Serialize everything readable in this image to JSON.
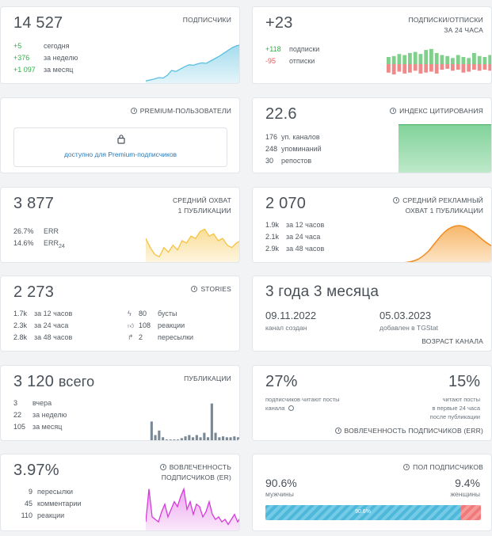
{
  "subscribers": {
    "value": "14 527",
    "title": "ПОДПИСЧИКИ",
    "rows": [
      {
        "n": "+5",
        "l": "сегодня"
      },
      {
        "n": "+376",
        "l": "за неделю"
      },
      {
        "n": "+1 097",
        "l": "за месяц"
      }
    ],
    "spark": [
      0.08,
      0.1,
      0.12,
      0.15,
      0.14,
      0.2,
      0.3,
      0.28,
      0.33,
      0.38,
      0.42,
      0.41,
      0.44,
      0.46,
      0.45,
      0.5,
      0.55,
      0.6,
      0.66,
      0.72,
      0.78,
      0.82,
      0.84
    ],
    "color": "#5bbfe0"
  },
  "subs24": {
    "value": "+23",
    "title_l1": "ПОДПИСКИ/ОТПИСКИ",
    "title_l2": "ЗА 24 ЧАСА",
    "rows": [
      {
        "n": "+118",
        "l": "подписки"
      },
      {
        "n": "-95",
        "l": "отписки"
      }
    ],
    "pos": [
      0.35,
      0.4,
      0.5,
      0.45,
      0.55,
      0.6,
      0.5,
      0.7,
      0.75,
      0.55,
      0.45,
      0.4,
      0.3,
      0.45,
      0.35,
      0.3,
      0.55,
      0.4,
      0.35,
      0.45
    ],
    "neg": [
      0.45,
      0.55,
      0.4,
      0.5,
      0.45,
      0.35,
      0.5,
      0.45,
      0.4,
      0.5,
      0.3,
      0.25,
      0.35,
      0.3,
      0.45,
      0.4,
      0.3,
      0.35,
      0.3,
      0.35
    ]
  },
  "premium": {
    "title": "PREMIUM-ПОЛЬЗОВАТЕЛИ",
    "link": "доступно для Premium-подписчиков"
  },
  "citation": {
    "value": "22.6",
    "title": "ИНДЕКС ЦИТИРОВАНИЯ",
    "rows": [
      {
        "n": "176",
        "l": "уп. каналов"
      },
      {
        "n": "248",
        "l": "упоминаний"
      },
      {
        "n": "30",
        "l": "репостов"
      }
    ]
  },
  "reach": {
    "value": "3 877",
    "title_l1": "СРЕДНИЙ ОХВАТ",
    "title_l2": "1 ПУБЛИКАЦИИ",
    "err_n": "26.7%",
    "err_l": "ERR",
    "err24_n": "14.6%",
    "err24_l": "ERR",
    "err24_sub": "24",
    "spark": [
      0.55,
      0.35,
      0.2,
      0.15,
      0.35,
      0.25,
      0.4,
      0.3,
      0.5,
      0.45,
      0.6,
      0.55,
      0.7,
      0.75,
      0.6,
      0.65,
      0.5,
      0.55,
      0.4,
      0.35,
      0.45,
      0.5
    ],
    "color": "#f5c242"
  },
  "adreach": {
    "value": "2 070",
    "title_l1": "СРЕДНИЙ РЕКЛАМНЫЙ",
    "title_l2": "ОХВАТ 1 ПУБЛИКАЦИИ",
    "rows": [
      {
        "n": "1.9k",
        "l": "за 12 часов"
      },
      {
        "n": "2.1k",
        "l": "за 24 часа"
      },
      {
        "n": "2.9k",
        "l": "за 48 часов"
      }
    ],
    "color": "#f39c3c"
  },
  "stories": {
    "value": "2 273",
    "title": "STORIES",
    "rows": [
      {
        "n": "1.7k",
        "l": "за 12 часов"
      },
      {
        "n": "2.3k",
        "l": "за 24 часа"
      },
      {
        "n": "2.8k",
        "l": "за 48 часов"
      }
    ],
    "rows2": [
      {
        "icon": "lightning-icon",
        "n": "80",
        "l": "бусты"
      },
      {
        "icon": "thumbs-up-icon",
        "n": "108",
        "l": "реакции"
      },
      {
        "icon": "share-icon",
        "n": "2",
        "l": "пересылки"
      }
    ]
  },
  "age": {
    "value": "3 года 3 месяца",
    "created_date": "09.11.2022",
    "created_label": "канал создан",
    "added_date": "05.03.2023",
    "added_label": "добавлен в TGStat",
    "title": "ВОЗРАСТ КАНАЛА"
  },
  "posts": {
    "value": "3 120",
    "value_suffix": "всего",
    "title": "ПУБЛИКАЦИИ",
    "rows": [
      {
        "n": "3",
        "l": "вчера"
      },
      {
        "n": "22",
        "l": "за неделю"
      },
      {
        "n": "105",
        "l": "за месяц"
      }
    ],
    "bars": [
      0.45,
      0.15,
      0.25,
      0.1,
      0.05,
      0.05,
      0.05,
      0.05,
      0.08,
      0.12,
      0.15,
      0.1,
      0.15,
      0.1,
      0.2,
      0.1,
      0.85,
      0.2,
      0.1,
      0.12,
      0.1,
      0.1,
      0.12,
      0.1
    ],
    "color": "#7a8794"
  },
  "engagement": {
    "pct1": "27%",
    "text1_l1": "подписчиков читают посты",
    "text1_l2": "канала",
    "pct2": "15%",
    "text2_l1": "читают посты",
    "text2_l2": "в первые 24 часа",
    "text2_l3": "после публикации",
    "title": "ВОВЛЕЧЕННОСТЬ ПОДПИСЧИКОВ (ERR)"
  },
  "er": {
    "value": "3.97%",
    "title_l1": "ВОВЛЕЧЕННОСТЬ",
    "title_l2": "ПОДПИСЧИКОВ (ER)",
    "rows": [
      {
        "n": "9",
        "l": "пересылки"
      },
      {
        "n": "45",
        "l": "комментарии"
      },
      {
        "n": "110",
        "l": "реакции"
      }
    ],
    "spark": [
      0.2,
      0.85,
      0.3,
      0.25,
      0.2,
      0.4,
      0.55,
      0.3,
      0.45,
      0.6,
      0.5,
      0.7,
      0.85,
      0.45,
      0.6,
      0.35,
      0.55,
      0.5,
      0.3,
      0.4,
      0.6,
      0.35,
      0.25,
      0.3,
      0.2,
      0.25,
      0.15,
      0.25,
      0.35,
      0.2,
      0.3
    ],
    "color": "#d63adb"
  },
  "gender": {
    "title": "ПОЛ ПОДПИСЧИКОВ",
    "male_pct": "90.6%",
    "male_label": "мужчины",
    "female_pct": "9.4%",
    "female_label": "женщины",
    "male_fraction": 0.906,
    "bar_label": "90.6%"
  }
}
